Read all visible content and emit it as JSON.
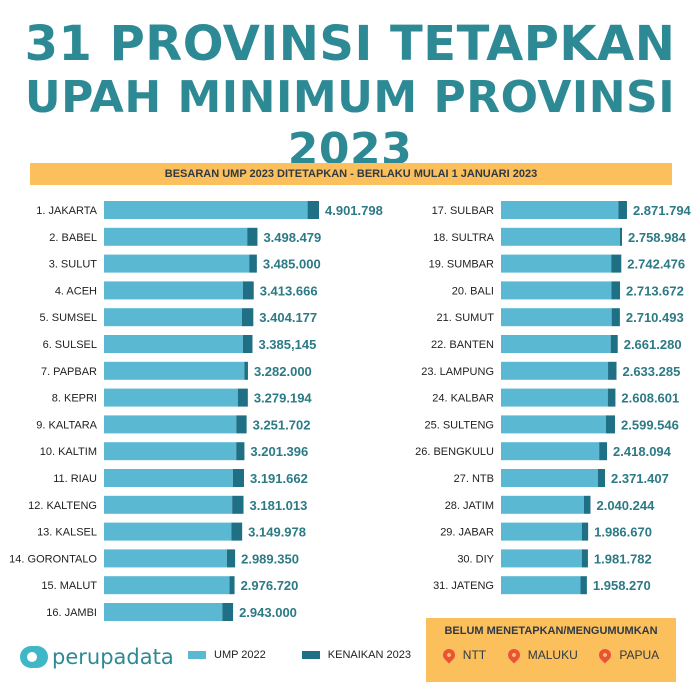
{
  "title": {
    "line1": "31 PROVINSI TETAPKAN",
    "line2": "UPAH MINIMUM PROVINSI 2023"
  },
  "subtitle": "BESARAN UMP 2023 DITETAPKAN - BERLAKU MULAI 1 JANUARI 2023",
  "colors": {
    "ump2022": "#5ab8d3",
    "kenaikan": "#1f6f85",
    "value_text": "#2c7a85",
    "banner": "#fbbf5c",
    "title": "#2d8a95",
    "pin": "#e8533a"
  },
  "chart_data": {
    "type": "bar",
    "orientation": "horizontal",
    "stacked": true,
    "series": [
      {
        "name": "UMP 2022"
      },
      {
        "name": "KENAIKAN 2023"
      }
    ],
    "rows": [
      {
        "label": "1. JAKARTA",
        "value_text": "4.901.798",
        "value": 4901798,
        "ump2022": 4641854
      },
      {
        "label": "2. BABEL",
        "value_text": "3.498.479",
        "value": 3498479,
        "ump2022": 3264884
      },
      {
        "label": "3. SULUT",
        "value_text": "3.485.000",
        "value": 3485000,
        "ump2022": 3310723
      },
      {
        "label": "4. ACEH",
        "value_text": "3.413.666",
        "value": 3413666,
        "ump2022": 3166460
      },
      {
        "label": "5. SUMSEL",
        "value_text": "3.404.177",
        "value": 3404177,
        "ump2022": 3144446
      },
      {
        "label": "6. SULSEL",
        "value_text": "3.385,145",
        "value": 3385145,
        "ump2022": 3165876
      },
      {
        "label": "7. PAPBAR",
        "value_text": "3.282.000",
        "value": 3282000,
        "ump2022": 3200000
      },
      {
        "label": "8. KEPRI",
        "value_text": "3.279.194",
        "value": 3279194,
        "ump2022": 3050172
      },
      {
        "label": "9. KALTARA",
        "value_text": "3.251.702",
        "value": 3251702,
        "ump2022": 3016738
      },
      {
        "label": "10. KALTIM",
        "value_text": "3.201.396",
        "value": 3201396,
        "ump2022": 3014497
      },
      {
        "label": "11. RIAU",
        "value_text": "3.191.662",
        "value": 3191662,
        "ump2022": 2938564
      },
      {
        "label": "12. KALTENG",
        "value_text": "3.181.013",
        "value": 3181013,
        "ump2022": 2922516
      },
      {
        "label": "13. KALSEL",
        "value_text": "3.149.978",
        "value": 3149978,
        "ump2022": 2906473
      },
      {
        "label": "14. GORONTALO",
        "value_text": "2.989.350",
        "value": 2989350,
        "ump2022": 2800580
      },
      {
        "label": "15. MALUT",
        "value_text": "2.976.720",
        "value": 2976720,
        "ump2022": 2862231
      },
      {
        "label": "16. JAMBI",
        "value_text": "2.943.000",
        "value": 2943000,
        "ump2022": 2698940
      },
      {
        "label": "17. SULBAR",
        "value_text": "2.871.794",
        "value": 2871794,
        "ump2022": 2678863
      },
      {
        "label": "18. SULTRA",
        "value_text": "2.758.984",
        "value": 2758984,
        "ump2022": 2710595
      },
      {
        "label": "19. SUMBAR",
        "value_text": "2.742.476",
        "value": 2742476,
        "ump2022": 2512539
      },
      {
        "label": "20. BALI",
        "value_text": "2.713.672",
        "value": 2713672,
        "ump2022": 2516971
      },
      {
        "label": "21. SUMUT",
        "value_text": "2.710.493",
        "value": 2710493,
        "ump2022": 2522609
      },
      {
        "label": "22. BANTEN",
        "value_text": "2.661.280",
        "value": 2661280,
        "ump2022": 2501203
      },
      {
        "label": "23. LAMPUNG",
        "value_text": "2.633.285",
        "value": 2633285,
        "ump2022": 2440486
      },
      {
        "label": "24. KALBAR",
        "value_text": "2.608.601",
        "value": 2608601,
        "ump2022": 2434328
      },
      {
        "label": "25. SULTENG",
        "value_text": "2.599.546",
        "value": 2599546,
        "ump2022": 2390739
      },
      {
        "label": "26. BENGKULU",
        "value_text": "2.418.094",
        "value": 2418094,
        "ump2022": 2238094
      },
      {
        "label": "27. NTB",
        "value_text": "2.371.407",
        "value": 2371407,
        "ump2022": 2207212
      },
      {
        "label": "28. JATIM",
        "value_text": "2.040.244",
        "value": 2040244,
        "ump2022": 1891567
      },
      {
        "label": "29. JABAR",
        "value_text": "1.986.670",
        "value": 1986670,
        "ump2022": 1841487
      },
      {
        "label": "30. DIY",
        "value_text": "1.981.782",
        "value": 1981782,
        "ump2022": 1840915
      },
      {
        "label": "31. JATENG",
        "value_text": "1.958.270",
        "value": 1958270,
        "ump2022": 1812935
      }
    ]
  },
  "legend": {
    "ump2022": "UMP 2022",
    "kenaikan": "KENAIKAN 2023"
  },
  "brand": "perupadata",
  "not_set": {
    "title": "BELUM MENETAPKAN/MENGUMUMKAN",
    "items": [
      "NTT",
      "MALUKU",
      "PAPUA"
    ],
    "icon": "location-pin-icon"
  }
}
